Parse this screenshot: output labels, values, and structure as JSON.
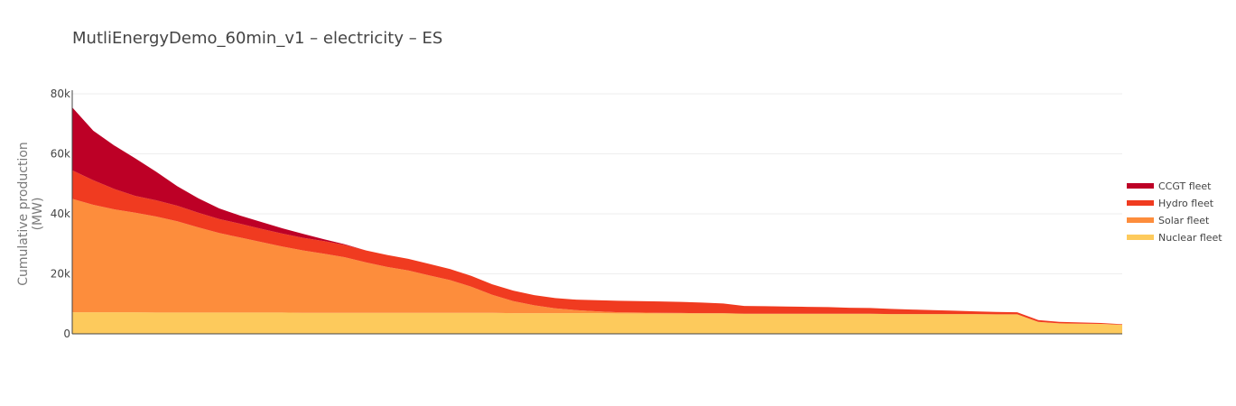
{
  "title": "MutliEnergyDemo_60min_v1 – electricity – ES",
  "chart_data": {
    "type": "area",
    "stacked": true,
    "title": "MutliEnergyDemo_60min_v1 – electricity – ES",
    "xlabel": "",
    "ylabel": "Cumulative production (MW)",
    "ylim": [
      0,
      80000
    ],
    "xlim": [
      0,
      100
    ],
    "yticks": [
      0,
      20000,
      40000,
      60000,
      80000
    ],
    "ytick_labels": [
      "0",
      "20k",
      "40k",
      "60k",
      "80k"
    ],
    "grid": true,
    "legend_position": "right",
    "x": [
      0,
      2,
      4,
      6,
      8,
      10,
      12,
      14,
      16,
      18,
      20,
      22,
      24,
      26,
      28,
      30,
      32,
      34,
      36,
      38,
      40,
      42,
      44,
      46,
      48,
      50,
      52,
      54,
      56,
      58,
      60,
      62,
      64,
      66,
      68,
      70,
      72,
      74,
      76,
      78,
      80,
      82,
      84,
      86,
      88,
      90,
      92,
      94,
      96,
      98,
      100
    ],
    "series": [
      {
        "name": "Nuclear fleet",
        "color": "#fdca5c",
        "values": [
          7200,
          7200,
          7200,
          7200,
          7100,
          7100,
          7100,
          7100,
          7100,
          7100,
          7100,
          7000,
          7000,
          7000,
          7000,
          7000,
          7000,
          7000,
          7000,
          7000,
          7000,
          6900,
          6900,
          6900,
          6900,
          6900,
          6800,
          6800,
          6800,
          6800,
          6800,
          6800,
          6700,
          6700,
          6700,
          6700,
          6700,
          6700,
          6700,
          6600,
          6600,
          6600,
          6600,
          6600,
          6500,
          6500,
          4000,
          3500,
          3400,
          3300,
          3000
        ]
      },
      {
        "name": "Solar fleet",
        "color": "#fd8d3c",
        "values": [
          37800,
          35800,
          34300,
          33200,
          32000,
          30400,
          28400,
          26500,
          25000,
          23500,
          22000,
          20800,
          19700,
          18500,
          16800,
          15300,
          14100,
          12500,
          10900,
          8700,
          6000,
          4000,
          2600,
          1600,
          1000,
          600,
          400,
          300,
          200,
          150,
          100,
          100,
          0,
          0,
          0,
          0,
          0,
          0,
          0,
          0,
          0,
          0,
          0,
          0,
          0,
          0,
          0,
          0,
          0,
          0,
          0
        ]
      },
      {
        "name": "Hydro fleet",
        "color": "#f03b20",
        "values": [
          9500,
          8200,
          6800,
          5600,
          5400,
          5200,
          4900,
          4700,
          4600,
          4400,
          4300,
          4200,
          4200,
          4100,
          4000,
          4000,
          3900,
          3800,
          3700,
          3600,
          3500,
          3500,
          3400,
          3400,
          3500,
          3700,
          3800,
          3800,
          3800,
          3700,
          3500,
          3200,
          2600,
          2500,
          2400,
          2300,
          2200,
          2000,
          1900,
          1700,
          1500,
          1300,
          1100,
          900,
          800,
          700,
          600,
          500,
          400,
          300,
          200
        ]
      },
      {
        "name": "CCGT fleet",
        "color": "#bd0026",
        "values": [
          21000,
          16500,
          14500,
          12500,
          9500,
          6500,
          4800,
          3500,
          2700,
          2300,
          1800,
          1300,
          600,
          200,
          0,
          0,
          0,
          0,
          0,
          0,
          0,
          0,
          0,
          0,
          0,
          0,
          0,
          0,
          0,
          0,
          0,
          0,
          0,
          0,
          0,
          0,
          0,
          0,
          0,
          0,
          0,
          0,
          0,
          0,
          0,
          0,
          0,
          0,
          0,
          0,
          0
        ]
      }
    ],
    "legend": [
      "CCGT fleet",
      "Hydro fleet",
      "Solar fleet",
      "Nuclear fleet"
    ]
  }
}
